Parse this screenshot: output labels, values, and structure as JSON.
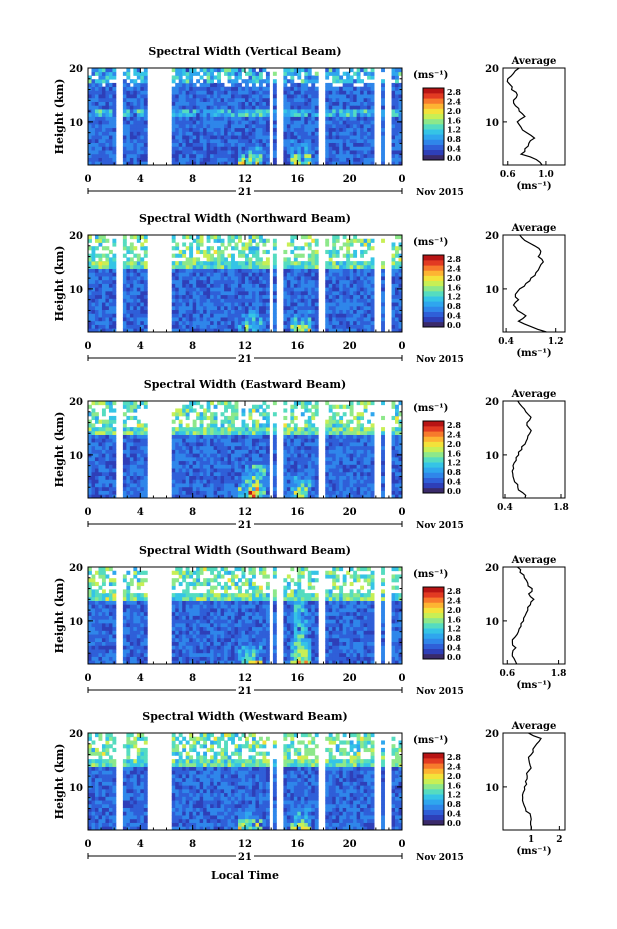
{
  "figure": {
    "x_axis_label": "Local Time",
    "day_label": "21",
    "month_label": "Nov 2015"
  },
  "colors": {
    "colormap": [
      "#3a2a6a",
      "#2e3fb8",
      "#2f5fd8",
      "#2f86ea",
      "#2fa6ee",
      "#35c4e6",
      "#55dcc0",
      "#8de88a",
      "#c8ef55",
      "#f3e23a",
      "#fdb432",
      "#f77a2c",
      "#e23a22",
      "#b81414"
    ],
    "gap": "#ffffff",
    "line": "#000000"
  },
  "chart_data": [
    {
      "type": "heatmap",
      "title": "Spectral Width (Vertical Beam)",
      "ylabel": "Height (km)",
      "x_ticks": [
        "0",
        "4",
        "8",
        "12",
        "16",
        "20",
        "0"
      ],
      "y_ticks": [
        "10",
        "20"
      ],
      "xlim": [
        0,
        24
      ],
      "ylim": [
        2,
        20
      ],
      "colorbar": {
        "unit": "(ms⁻¹)",
        "ticks": [
          "2.8",
          "2.4",
          "2.0",
          "1.6",
          "1.2",
          "0.8",
          "0.4",
          "0.0"
        ]
      },
      "average": {
        "title": "Average",
        "xlabel": "(ms⁻¹)",
        "x_ticks": [
          "0.6",
          "1.0"
        ],
        "xlim": [
          0.55,
          1.2
        ],
        "profile": [
          [
            2,
            0.96
          ],
          [
            3,
            0.9
          ],
          [
            4,
            0.74
          ],
          [
            5,
            0.78
          ],
          [
            6,
            0.82
          ],
          [
            7,
            0.88
          ],
          [
            8,
            0.8
          ],
          [
            9,
            0.74
          ],
          [
            10,
            0.7
          ],
          [
            11,
            0.78
          ],
          [
            12,
            0.72
          ],
          [
            13,
            0.68
          ],
          [
            14,
            0.66
          ],
          [
            15,
            0.7
          ],
          [
            16,
            0.64
          ],
          [
            17,
            0.62
          ],
          [
            18,
            0.6
          ],
          [
            19,
            0.66
          ],
          [
            20,
            0.72
          ]
        ]
      }
    },
    {
      "type": "heatmap",
      "title": "Spectral Width (Northward Beam)",
      "ylabel": "Height (km)",
      "x_ticks": [
        "0",
        "4",
        "8",
        "12",
        "16",
        "20",
        "0"
      ],
      "y_ticks": [
        "10",
        "20"
      ],
      "xlim": [
        0,
        24
      ],
      "ylim": [
        2,
        20
      ],
      "colorbar": {
        "unit": "(ms⁻¹)",
        "ticks": [
          "2.8",
          "2.4",
          "2.0",
          "1.6",
          "1.2",
          "0.8",
          "0.4",
          "0.0"
        ]
      },
      "average": {
        "title": "Average",
        "xlabel": "(ms⁻¹)",
        "x_ticks": [
          "0.4",
          "1.2"
        ],
        "xlim": [
          0.35,
          1.35
        ],
        "profile": [
          [
            2,
            1.05
          ],
          [
            3,
            0.8
          ],
          [
            4,
            0.6
          ],
          [
            5,
            0.72
          ],
          [
            6,
            0.58
          ],
          [
            7,
            0.52
          ],
          [
            8,
            0.6
          ],
          [
            9,
            0.55
          ],
          [
            10,
            0.62
          ],
          [
            11,
            0.72
          ],
          [
            12,
            0.8
          ],
          [
            13,
            0.88
          ],
          [
            14,
            0.94
          ],
          [
            15,
            1.0
          ],
          [
            16,
            0.92
          ],
          [
            17,
            0.96
          ],
          [
            18,
            0.86
          ],
          [
            19,
            0.7
          ],
          [
            20,
            0.62
          ]
        ]
      }
    },
    {
      "type": "heatmap",
      "title": "Spectral Width (Eastward Beam)",
      "ylabel": "Height (km)",
      "x_ticks": [
        "0",
        "4",
        "8",
        "12",
        "16",
        "20",
        "0"
      ],
      "y_ticks": [
        "10",
        "20"
      ],
      "xlim": [
        0,
        24
      ],
      "ylim": [
        2,
        20
      ],
      "colorbar": {
        "unit": "(ms⁻¹)",
        "ticks": [
          "2.8",
          "2.4",
          "2.0",
          "1.6",
          "1.2",
          "0.8",
          "0.4",
          "0.0"
        ]
      },
      "average": {
        "title": "Average",
        "xlabel": "",
        "x_ticks": [
          "0.4",
          "1.8"
        ],
        "xlim": [
          0.35,
          1.9
        ],
        "profile": [
          [
            2,
            0.9
          ],
          [
            3,
            0.84
          ],
          [
            4,
            0.72
          ],
          [
            5,
            0.64
          ],
          [
            6,
            0.6
          ],
          [
            7,
            0.58
          ],
          [
            8,
            0.6
          ],
          [
            9,
            0.68
          ],
          [
            10,
            0.74
          ],
          [
            11,
            0.82
          ],
          [
            12,
            0.9
          ],
          [
            13,
            0.96
          ],
          [
            14,
            1.02
          ],
          [
            15,
            1.0
          ],
          [
            16,
            0.95
          ],
          [
            17,
            1.05
          ],
          [
            18,
            0.92
          ],
          [
            19,
            0.82
          ],
          [
            20,
            0.72
          ]
        ]
      }
    },
    {
      "type": "heatmap",
      "title": "Spectral Width (Southward Beam)",
      "ylabel": "Height (km)",
      "x_ticks": [
        "0",
        "4",
        "8",
        "12",
        "16",
        "20",
        "0"
      ],
      "y_ticks": [
        "10",
        "20"
      ],
      "xlim": [
        0,
        24
      ],
      "ylim": [
        2,
        20
      ],
      "colorbar": {
        "unit": "(ms⁻¹)",
        "ticks": [
          "2.8",
          "2.4",
          "2.0",
          "1.6",
          "1.2",
          "0.8",
          "0.4",
          "0.0"
        ]
      },
      "average": {
        "title": "Average",
        "xlabel": "(ms⁻¹)",
        "x_ticks": [
          "0.6",
          "1.8"
        ],
        "xlim": [
          0.5,
          1.95
        ],
        "profile": [
          [
            2,
            0.82
          ],
          [
            3,
            0.76
          ],
          [
            4,
            0.72
          ],
          [
            5,
            0.8
          ],
          [
            6,
            0.72
          ],
          [
            7,
            0.78
          ],
          [
            8,
            0.86
          ],
          [
            9,
            0.92
          ],
          [
            10,
            0.98
          ],
          [
            11,
            1.02
          ],
          [
            12,
            1.08
          ],
          [
            13,
            1.14
          ],
          [
            14,
            1.22
          ],
          [
            15,
            1.1
          ],
          [
            16,
            1.18
          ],
          [
            17,
            1.08
          ],
          [
            18,
            1.0
          ],
          [
            19,
            0.9
          ],
          [
            20,
            0.84
          ]
        ]
      }
    },
    {
      "type": "heatmap",
      "title": "Spectral Width (Westward Beam)",
      "ylabel": "Height (km)",
      "x_ticks": [
        "0",
        "4",
        "8",
        "12",
        "16",
        "20",
        "0"
      ],
      "y_ticks": [
        "10",
        "20"
      ],
      "xlim": [
        0,
        24
      ],
      "ylim": [
        2,
        20
      ],
      "colorbar": {
        "unit": "(ms⁻¹)",
        "ticks": [
          "2.8",
          "2.4",
          "2.0",
          "1.6",
          "1.2",
          "0.8",
          "0.4",
          "0.0"
        ]
      },
      "average": {
        "title": "Average",
        "xlabel": "(ms⁻¹)",
        "x_ticks": [
          "1",
          "2"
        ],
        "xlim": [
          0,
          2.2
        ],
        "profile": [
          [
            2,
            1.0
          ],
          [
            3,
            0.98
          ],
          [
            4,
            1.0
          ],
          [
            5,
            0.96
          ],
          [
            6,
            0.8
          ],
          [
            7,
            0.72
          ],
          [
            8,
            0.7
          ],
          [
            9,
            0.72
          ],
          [
            10,
            0.76
          ],
          [
            11,
            0.8
          ],
          [
            12,
            0.86
          ],
          [
            13,
            0.92
          ],
          [
            14,
            0.96
          ],
          [
            15,
            0.92
          ],
          [
            16,
            1.0
          ],
          [
            17,
            1.06
          ],
          [
            18,
            1.2
          ],
          [
            19,
            1.35
          ],
          [
            20,
            0.9
          ]
        ]
      }
    }
  ]
}
